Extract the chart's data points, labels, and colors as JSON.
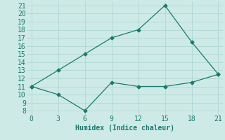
{
  "line1_x": [
    0,
    3,
    6,
    9,
    12,
    15,
    18,
    21
  ],
  "line1_y": [
    11,
    13,
    15,
    17,
    18,
    21,
    16.5,
    12.5
  ],
  "line2_x": [
    0,
    3,
    6,
    9,
    12,
    15,
    18,
    21
  ],
  "line2_y": [
    11,
    10,
    8,
    11.5,
    11,
    11,
    11.5,
    12.5
  ],
  "line_color": "#1a7a6e",
  "bg_color": "#ceeae6",
  "grid_color": "#b0d8d4",
  "xlabel": "Humidex (Indice chaleur)",
  "xlim": [
    -0.5,
    21.5
  ],
  "ylim": [
    7.5,
    21.5
  ],
  "xticks": [
    0,
    3,
    6,
    9,
    12,
    15,
    18,
    21
  ],
  "yticks": [
    8,
    9,
    10,
    11,
    12,
    13,
    14,
    15,
    16,
    17,
    18,
    19,
    20,
    21
  ],
  "marker": "D",
  "marker_size": 2.5,
  "linewidth": 0.9,
  "font_size": 7
}
